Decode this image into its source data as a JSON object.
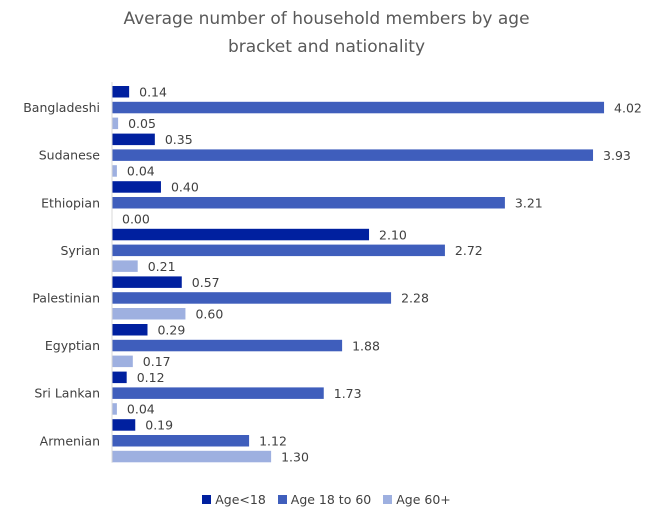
{
  "chart_data": {
    "type": "bar",
    "orientation": "horizontal",
    "title_lines": [
      "Average number of household members by age",
      "bracket and nationality"
    ],
    "categories": [
      "Bangladeshi",
      "Sudanese",
      "Ethiopian",
      "Syrian",
      "Palestinian",
      "Egyptian",
      "Sri Lankan",
      "Armenian"
    ],
    "series": [
      {
        "name": "Age<18",
        "color": "#00209f",
        "values": [
          0.14,
          0.35,
          0.4,
          2.1,
          0.57,
          0.29,
          0.12,
          0.19
        ]
      },
      {
        "name": "Age 18 to 60",
        "color": "#3f5ebc",
        "values": [
          4.02,
          3.93,
          3.21,
          2.72,
          2.28,
          1.88,
          1.73,
          1.12
        ]
      },
      {
        "name": "Age 60+",
        "color": "#9eb0e0",
        "values": [
          0.05,
          0.04,
          0.0,
          0.21,
          0.6,
          0.17,
          0.04,
          1.3
        ]
      }
    ],
    "data_labels": true,
    "legend_position": "bottom",
    "grid": false
  }
}
